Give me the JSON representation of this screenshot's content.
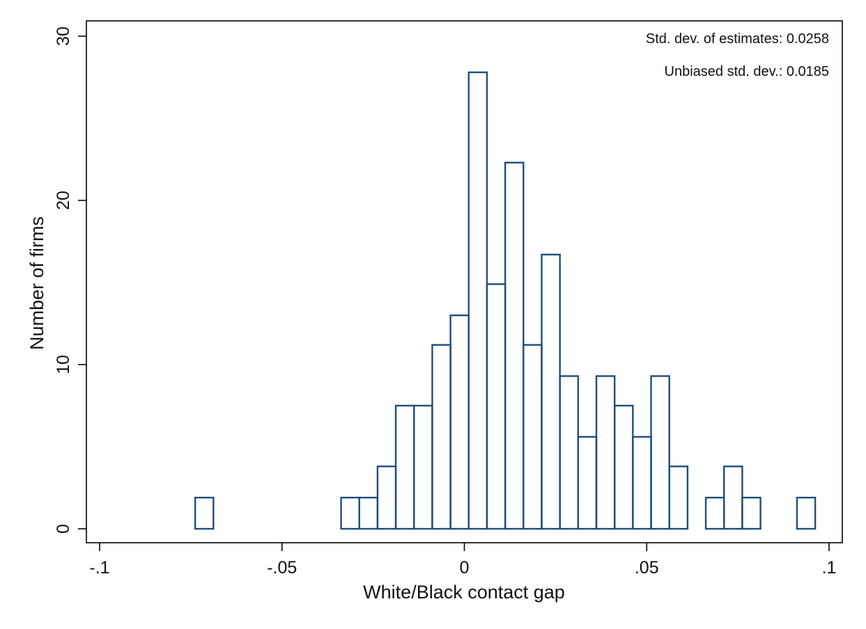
{
  "chart_data": {
    "type": "bar",
    "subtype": "histogram",
    "xlabel": "White/Black contact gap",
    "ylabel": "Number of firms",
    "xlim": [
      -0.1,
      0.1
    ],
    "ylim": [
      0,
      30
    ],
    "xticks": [
      -0.1,
      -0.05,
      0,
      0.05,
      0.1
    ],
    "xtick_labels": [
      "-.1",
      "-.05",
      "0",
      ".05",
      ".1"
    ],
    "yticks": [
      0,
      10,
      20,
      30
    ],
    "ytick_labels": [
      "0",
      "10",
      "20",
      "30"
    ],
    "grid": false,
    "bar_fill": "none",
    "bar_color": "#1f4e79",
    "bins": [
      {
        "x0": -0.0738,
        "x1": -0.0688,
        "count": 1.9
      },
      {
        "x0": -0.0338,
        "x1": -0.0288,
        "count": 1.9
      },
      {
        "x0": -0.0288,
        "x1": -0.0238,
        "count": 1.9
      },
      {
        "x0": -0.0238,
        "x1": -0.0188,
        "count": 3.8
      },
      {
        "x0": -0.0188,
        "x1": -0.0138,
        "count": 7.5
      },
      {
        "x0": -0.0138,
        "x1": -0.0088,
        "count": 7.5
      },
      {
        "x0": -0.0088,
        "x1": -0.0038,
        "count": 11.2
      },
      {
        "x0": -0.0038,
        "x1": 0.0012,
        "count": 13.0
      },
      {
        "x0": 0.0012,
        "x1": 0.0062,
        "count": 27.8
      },
      {
        "x0": 0.0062,
        "x1": 0.0112,
        "count": 14.9
      },
      {
        "x0": 0.0112,
        "x1": 0.0162,
        "count": 22.3
      },
      {
        "x0": 0.0162,
        "x1": 0.0212,
        "count": 11.2
      },
      {
        "x0": 0.0212,
        "x1": 0.0262,
        "count": 16.7
      },
      {
        "x0": 0.0262,
        "x1": 0.0312,
        "count": 9.3
      },
      {
        "x0": 0.0312,
        "x1": 0.0362,
        "count": 5.6
      },
      {
        "x0": 0.0362,
        "x1": 0.0412,
        "count": 9.3
      },
      {
        "x0": 0.0412,
        "x1": 0.0462,
        "count": 7.5
      },
      {
        "x0": 0.0462,
        "x1": 0.0512,
        "count": 5.6
      },
      {
        "x0": 0.0512,
        "x1": 0.0562,
        "count": 9.3
      },
      {
        "x0": 0.0562,
        "x1": 0.0612,
        "count": 3.8
      },
      {
        "x0": 0.0662,
        "x1": 0.0712,
        "count": 1.9
      },
      {
        "x0": 0.0712,
        "x1": 0.0762,
        "count": 3.8
      },
      {
        "x0": 0.0762,
        "x1": 0.0812,
        "count": 1.9
      },
      {
        "x0": 0.0912,
        "x1": 0.0962,
        "count": 1.9
      }
    ],
    "annotations": [
      "Std. dev. of estimates: 0.0258",
      "Unbiased std. dev.: 0.0185"
    ]
  }
}
